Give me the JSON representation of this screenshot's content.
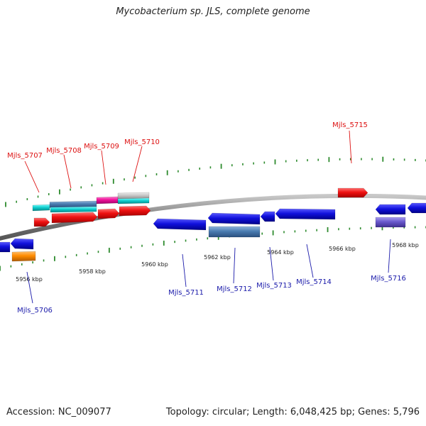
{
  "title": "Mycobacterium sp. JLS, complete genome",
  "footer": {
    "accession": "Accession: NC_009077",
    "summary": "Topology: circular; Length: 6,048,425 bp; Genes: 5,796"
  },
  "colors": {
    "backbone": "#808080",
    "tick": "#2e8b2e",
    "forward_label": "#dd1111",
    "reverse_label": "#1a1aaa"
  },
  "scale_labels": [
    "5956 kbp",
    "5958 kbp",
    "5960 kbp",
    "5962 kbp",
    "5964 kbp",
    "5966 kbp",
    "5968 kbp"
  ],
  "forward_labels": [
    "Mjls_5707",
    "Mjls_5708",
    "Mjls_5709",
    "Mjls_5710",
    "Mjls_5715"
  ],
  "reverse_labels": [
    "Mjls_5706",
    "Mjls_5711",
    "Mjls_5712",
    "Mjls_5713",
    "Mjls_5714",
    "Mjls_5716"
  ],
  "feature_colors": [
    "red",
    "cyan",
    "steelblue",
    "hotpink",
    "lightgray",
    "blue",
    "orange",
    "slateblue"
  ]
}
